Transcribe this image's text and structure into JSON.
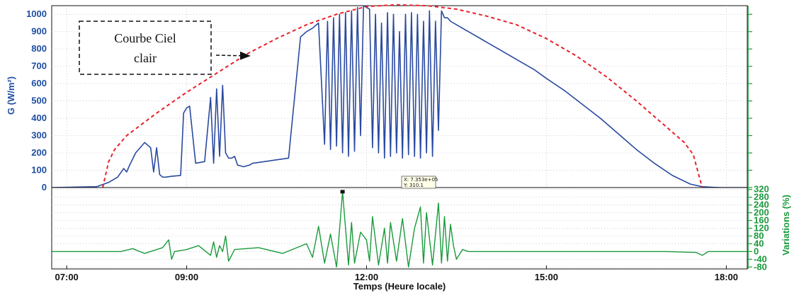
{
  "chart_data": {
    "type": "line",
    "xlabel": "Temps (Heure locale)",
    "x_ticks": [
      "07:00",
      "09:00",
      "12:00",
      "15:00",
      "18:00"
    ],
    "x_tick_hours": [
      7,
      9,
      12,
      15,
      18
    ],
    "xlim_hours": [
      6.75,
      18.35
    ],
    "panels": [
      {
        "ylabel": "G (W/m²)",
        "ylim": [
          0,
          1050
        ],
        "y_ticks": [
          0,
          100,
          200,
          300,
          400,
          500,
          600,
          700,
          800,
          900,
          1000
        ],
        "series": [
          {
            "color": "#2a4aa0",
            "style": "solid",
            "x_hours": [
              6.75,
              7.5,
              7.7,
              7.85,
              7.95,
              8.0,
              8.05,
              8.15,
              8.3,
              8.4,
              8.45,
              8.5,
              8.55,
              8.6,
              8.65,
              8.75,
              8.9,
              8.95,
              9.0,
              9.05,
              9.15,
              9.3,
              9.4,
              9.45,
              9.5,
              9.55,
              9.6,
              9.65,
              9.7,
              9.75,
              9.8,
              9.85,
              9.9,
              9.95,
              10.0,
              10.05,
              10.1,
              10.3,
              10.5,
              10.7,
              10.9,
              11.0,
              11.1,
              11.2,
              11.3,
              11.35,
              11.4,
              11.45,
              11.5,
              11.55,
              11.6,
              11.65,
              11.7,
              11.75,
              11.8,
              11.85,
              11.9,
              11.95,
              12.0,
              12.05,
              12.1,
              12.15,
              12.2,
              12.25,
              12.3,
              12.35,
              12.4,
              12.45,
              12.5,
              12.55,
              12.6,
              12.65,
              12.7,
              12.75,
              12.8,
              12.85,
              12.9,
              12.95,
              13.0,
              13.05,
              13.1,
              13.15,
              13.2,
              13.25,
              13.3,
              13.35,
              13.4,
              13.45,
              13.5,
              13.55,
              13.6,
              13.65,
              13.7,
              13.75,
              13.9,
              14.0,
              14.2,
              14.5,
              14.8,
              15.0,
              15.3,
              15.6,
              15.9,
              16.2,
              16.5,
              16.8,
              17.1,
              17.4,
              17.6,
              17.75,
              17.9,
              18.35
            ],
            "values": [
              0,
              5,
              30,
              60,
              110,
              90,
              130,
              200,
              260,
              230,
              90,
              230,
              75,
              60,
              60,
              65,
              70,
              430,
              460,
              470,
              140,
              150,
              520,
              140,
              570,
              180,
              590,
              200,
              170,
              170,
              180,
              130,
              125,
              120,
              125,
              130,
              140,
              150,
              160,
              170,
              870,
              900,
              920,
              950,
              250,
              960,
              220,
              980,
              240,
              1000,
              200,
              1010,
              180,
              1020,
              210,
              1040,
              300,
              1050,
              1040,
              1030,
              230,
              1000,
              200,
              950,
              170,
              1010,
              180,
              1000,
              200,
              900,
              170,
              1000,
              190,
              1010,
              180,
              1000,
              170,
              960,
              200,
              1020,
              180,
              960,
              330,
              1020,
              980,
              980,
              960,
              950,
              940,
              930,
              920,
              910,
              900,
              890,
              860,
              840,
              800,
              740,
              680,
              630,
              560,
              480,
              400,
              310,
              220,
              140,
              70,
              20,
              5,
              2,
              0,
              0
            ]
          },
          {
            "name": "Courbe Ciel clair",
            "color": "#e8202a",
            "style": "dashed",
            "x_hours": [
              7.6,
              7.7,
              7.8,
              8.0,
              8.5,
              9.0,
              9.5,
              10.0,
              10.5,
              11.0,
              11.5,
              12.0,
              12.5,
              13.0,
              13.5,
              14.0,
              14.5,
              15.0,
              15.5,
              16.0,
              16.5,
              17.0,
              17.3,
              17.45,
              17.55,
              17.6
            ],
            "values": [
              0,
              150,
              220,
              300,
              430,
              550,
              660,
              770,
              860,
              940,
              1000,
              1045,
              1055,
              1050,
              1030,
              990,
              940,
              860,
              760,
              640,
              500,
              350,
              260,
              190,
              60,
              0
            ]
          }
        ],
        "annotation": {
          "lines": [
            "Courbe Ciel",
            "clair"
          ],
          "arrow_to_hour": 10.05,
          "arrow_to_value": 760
        }
      },
      {
        "ylabel": "Variations (%)",
        "ylim": [
          -90,
          330
        ],
        "y_ticks": [
          -80,
          -40,
          0,
          40,
          80,
          120,
          160,
          200,
          240,
          280,
          320
        ],
        "series": [
          {
            "color": "#1a9a3c",
            "style": "solid",
            "x_hours": [
              6.75,
              7.9,
              8.1,
              8.3,
              8.6,
              8.7,
              8.75,
              8.8,
              9.0,
              9.2,
              9.4,
              9.45,
              9.5,
              9.55,
              9.6,
              9.65,
              9.7,
              9.8,
              10.2,
              10.6,
              11.0,
              11.1,
              11.2,
              11.3,
              11.4,
              11.5,
              11.55,
              11.6,
              11.7,
              11.75,
              11.8,
              11.9,
              12.0,
              12.05,
              12.1,
              12.2,
              12.3,
              12.35,
              12.4,
              12.5,
              12.6,
              12.7,
              12.8,
              12.9,
              12.95,
              13.0,
              13.1,
              13.2,
              13.25,
              13.3,
              13.35,
              13.4,
              13.45,
              13.5,
              13.6,
              13.7,
              14.0,
              15.0,
              16.0,
              17.0,
              17.5,
              17.6,
              17.7,
              18.35
            ],
            "values": [
              0,
              0,
              15,
              -10,
              20,
              60,
              -40,
              0,
              10,
              30,
              -20,
              50,
              -30,
              30,
              0,
              80,
              -50,
              10,
              20,
              -10,
              40,
              -30,
              130,
              -60,
              90,
              -80,
              110,
              310,
              -70,
              150,
              -60,
              100,
              60,
              -50,
              180,
              -70,
              120,
              -60,
              150,
              -50,
              170,
              -80,
              120,
              230,
              -60,
              200,
              -70,
              250,
              -60,
              180,
              -50,
              140,
              30,
              -40,
              10,
              0,
              0,
              0,
              0,
              0,
              -5,
              -20,
              0,
              0
            ]
          }
        ],
        "datatip": {
          "lines": [
            "X: 7.353e+05",
            "Y: 310.1"
          ],
          "hour": 11.6,
          "value": 310.1
        }
      }
    ]
  }
}
